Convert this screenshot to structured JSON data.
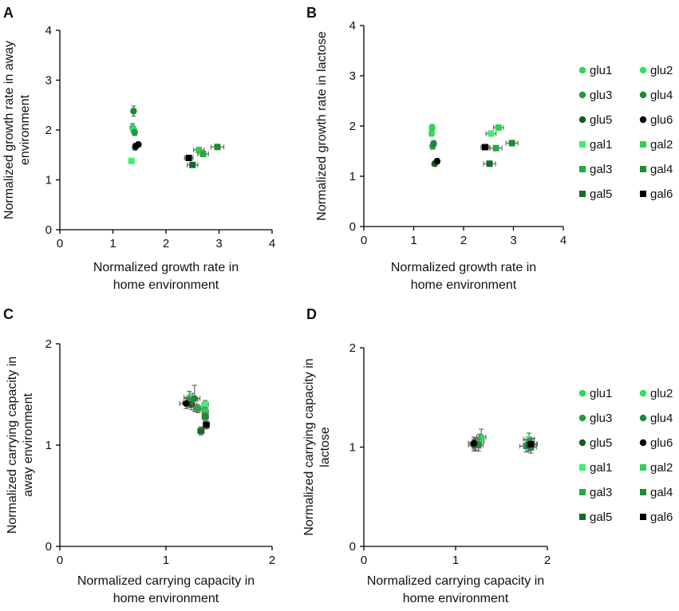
{
  "figure_title": "",
  "legend_entries": [
    {
      "name": "glu1",
      "color": "#22dd55",
      "marker": "circle"
    },
    {
      "name": "glu2",
      "color": "#33e05e",
      "marker": "circle"
    },
    {
      "name": "glu3",
      "color": "#1f9e3c",
      "marker": "circle"
    },
    {
      "name": "glu4",
      "color": "#1a8a34",
      "marker": "circle"
    },
    {
      "name": "glu5",
      "color": "#145e26",
      "marker": "circle"
    },
    {
      "name": "glu6",
      "color": "#000000",
      "marker": "circle"
    },
    {
      "name": "gal1",
      "color": "#3cf070",
      "marker": "square"
    },
    {
      "name": "gal2",
      "color": "#30cf55",
      "marker": "square"
    },
    {
      "name": "gal3",
      "color": "#27a843",
      "marker": "square"
    },
    {
      "name": "gal4",
      "color": "#1e8c35",
      "marker": "square"
    },
    {
      "name": "gal5",
      "color": "#176b2a",
      "marker": "square"
    },
    {
      "name": "gal6",
      "color": "#000000",
      "marker": "square"
    }
  ],
  "chart_data": [
    {
      "panel": "A",
      "type": "scatter",
      "xlabel": [
        "Normalized growth rate in",
        "home environment"
      ],
      "ylabel": [
        "Normalized growth rate in away",
        "environment"
      ],
      "xlim": [
        0,
        4
      ],
      "ylim": [
        0,
        4
      ],
      "xticks": [
        "0",
        "1",
        "2",
        "3",
        "4"
      ],
      "yticks": [
        "0",
        "1",
        "2",
        "3",
        "4"
      ],
      "points": [
        {
          "series": "glu1",
          "x": 1.37,
          "y": 2.05,
          "xerr": 0.04,
          "yerr": 0.08
        },
        {
          "series": "glu2",
          "x": 1.39,
          "y": 2.0,
          "xerr": 0.04,
          "yerr": 0.06
        },
        {
          "series": "glu3",
          "x": 1.41,
          "y": 1.95,
          "xerr": 0.04,
          "yerr": 0.06
        },
        {
          "series": "glu4",
          "x": 1.39,
          "y": 2.38,
          "xerr": 0.04,
          "yerr": 0.1
        },
        {
          "series": "glu5",
          "x": 1.42,
          "y": 1.65,
          "xerr": 0.04,
          "yerr": 0.05
        },
        {
          "series": "glu6",
          "x": 1.43,
          "y": 1.68,
          "xerr": 0.04,
          "yerr": 0.05
        },
        {
          "series": "gal1",
          "x": 1.35,
          "y": 1.38,
          "xerr": 0.04,
          "yerr": 0.05
        },
        {
          "series": "gal2",
          "x": 2.62,
          "y": 1.6,
          "xerr": 0.1,
          "yerr": 0.05
        },
        {
          "series": "gal3",
          "x": 2.7,
          "y": 1.52,
          "xerr": 0.1,
          "yerr": 0.05
        },
        {
          "series": "gal4",
          "x": 2.97,
          "y": 1.66,
          "xerr": 0.12,
          "yerr": 0.05
        },
        {
          "series": "gal5",
          "x": 2.5,
          "y": 1.3,
          "xerr": 0.1,
          "yerr": 0.05
        },
        {
          "series": "gal6",
          "x": 2.43,
          "y": 1.44,
          "xerr": 0.08,
          "yerr": 0.05
        },
        {
          "series": "glu6",
          "x": 1.48,
          "y": 1.71,
          "xerr": 0.04,
          "yerr": 0.04
        }
      ]
    },
    {
      "panel": "B",
      "type": "scatter",
      "xlabel": [
        "Normalized growth rate in",
        "home environment"
      ],
      "ylabel": [
        "Normalized growth rate in lactose"
      ],
      "xlim": [
        0,
        4
      ],
      "ylim": [
        0,
        4
      ],
      "xticks": [
        "0",
        "1",
        "2",
        "3",
        "4"
      ],
      "yticks": [
        "0",
        "1",
        "2",
        "3",
        "4"
      ],
      "points": [
        {
          "series": "glu1",
          "x": 1.37,
          "y": 1.97,
          "xerr": 0.04,
          "yerr": 0.06
        },
        {
          "series": "glu2",
          "x": 1.36,
          "y": 1.86,
          "xerr": 0.04,
          "yerr": 0.06
        },
        {
          "series": "glu3",
          "x": 1.38,
          "y": 1.6,
          "xerr": 0.04,
          "yerr": 0.06
        },
        {
          "series": "glu4",
          "x": 1.4,
          "y": 1.65,
          "xerr": 0.04,
          "yerr": 0.06
        },
        {
          "series": "glu5",
          "x": 1.42,
          "y": 1.25,
          "xerr": 0.04,
          "yerr": 0.05
        },
        {
          "series": "glu6",
          "x": 1.47,
          "y": 1.3,
          "xerr": 0.04,
          "yerr": 0.05
        },
        {
          "series": "gal1",
          "x": 2.55,
          "y": 1.85,
          "xerr": 0.1,
          "yerr": 0.05
        },
        {
          "series": "gal2",
          "x": 2.7,
          "y": 1.97,
          "xerr": 0.1,
          "yerr": 0.05
        },
        {
          "series": "gal3",
          "x": 2.65,
          "y": 1.56,
          "xerr": 0.12,
          "yerr": 0.05
        },
        {
          "series": "gal4",
          "x": 2.97,
          "y": 1.66,
          "xerr": 0.12,
          "yerr": 0.05
        },
        {
          "series": "gal5",
          "x": 2.52,
          "y": 1.25,
          "xerr": 0.12,
          "yerr": 0.05
        },
        {
          "series": "gal6",
          "x": 2.43,
          "y": 1.58,
          "xerr": 0.08,
          "yerr": 0.05
        }
      ]
    },
    {
      "panel": "C",
      "type": "scatter",
      "xlabel": [
        "Normalized carrying capacity in",
        "home environment"
      ],
      "ylabel": [
        "Normalized carrying capacity in",
        "away environment"
      ],
      "xlim": [
        0,
        2
      ],
      "ylim": [
        0,
        2
      ],
      "xticks": [
        "0",
        "1",
        "2"
      ],
      "yticks": [
        "0",
        "1",
        "2"
      ],
      "points": [
        {
          "series": "glu1",
          "x": 1.22,
          "y": 1.47,
          "xerr": 0.05,
          "yerr": 0.06
        },
        {
          "series": "glu2",
          "x": 1.25,
          "y": 1.45,
          "xerr": 0.05,
          "yerr": 0.06
        },
        {
          "series": "glu3",
          "x": 1.21,
          "y": 1.42,
          "xerr": 0.05,
          "yerr": 0.05
        },
        {
          "series": "glu4",
          "x": 1.27,
          "y": 1.46,
          "xerr": 0.05,
          "yerr": 0.13
        },
        {
          "series": "glu5",
          "x": 1.24,
          "y": 1.4,
          "xerr": 0.05,
          "yerr": 0.05
        },
        {
          "series": "glu6",
          "x": 1.19,
          "y": 1.41,
          "xerr": 0.06,
          "yerr": 0.05
        },
        {
          "series": "gal1",
          "x": 1.37,
          "y": 1.4,
          "xerr": 0.03,
          "yerr": 0.04
        },
        {
          "series": "gal2",
          "x": 1.37,
          "y": 1.33,
          "xerr": 0.03,
          "yerr": 0.04
        },
        {
          "series": "gal3",
          "x": 1.3,
          "y": 1.36,
          "xerr": 0.04,
          "yerr": 0.04
        },
        {
          "series": "gal4",
          "x": 1.37,
          "y": 1.28,
          "xerr": 0.03,
          "yerr": 0.04
        },
        {
          "series": "gal5",
          "x": 1.33,
          "y": 1.14,
          "xerr": 0.03,
          "yerr": 0.04
        },
        {
          "series": "gal6",
          "x": 1.38,
          "y": 1.2,
          "xerr": 0.03,
          "yerr": 0.04
        }
      ]
    },
    {
      "panel": "D",
      "type": "scatter",
      "xlabel": [
        "Normalized carrying capacity in",
        "home environment"
      ],
      "ylabel": [
        "Normalized carrying capacity in",
        "lactose"
      ],
      "xlim": [
        0,
        2
      ],
      "ylim": [
        0,
        2
      ],
      "xticks": [
        "0",
        "1",
        "2"
      ],
      "yticks": [
        "0",
        "1",
        "2"
      ],
      "points": [
        {
          "series": "glu1",
          "x": 1.28,
          "y": 1.1,
          "xerr": 0.05,
          "yerr": 0.08
        },
        {
          "series": "glu2",
          "x": 1.26,
          "y": 1.06,
          "xerr": 0.05,
          "yerr": 0.07
        },
        {
          "series": "glu3",
          "x": 1.22,
          "y": 1.03,
          "xerr": 0.06,
          "yerr": 0.06
        },
        {
          "series": "glu4",
          "x": 1.25,
          "y": 1.02,
          "xerr": 0.05,
          "yerr": 0.06
        },
        {
          "series": "glu5",
          "x": 1.2,
          "y": 1.02,
          "xerr": 0.06,
          "yerr": 0.06
        },
        {
          "series": "glu6",
          "x": 1.2,
          "y": 1.04,
          "xerr": 0.06,
          "yerr": 0.06
        },
        {
          "series": "gal1",
          "x": 1.8,
          "y": 1.08,
          "xerr": 0.06,
          "yerr": 0.06
        },
        {
          "series": "gal2",
          "x": 1.83,
          "y": 1.03,
          "xerr": 0.06,
          "yerr": 0.06
        },
        {
          "series": "gal3",
          "x": 1.77,
          "y": 1.01,
          "xerr": 0.07,
          "yerr": 0.06
        },
        {
          "series": "gal4",
          "x": 1.82,
          "y": 1.0,
          "xerr": 0.06,
          "yerr": 0.06
        },
        {
          "series": "gal5",
          "x": 1.8,
          "y": 1.02,
          "xerr": 0.06,
          "yerr": 0.06
        },
        {
          "series": "gal6",
          "x": 1.82,
          "y": 1.03,
          "xerr": 0.06,
          "yerr": 0.06
        }
      ]
    }
  ]
}
